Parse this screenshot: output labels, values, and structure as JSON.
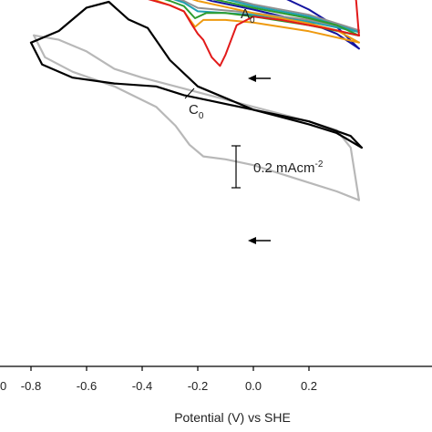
{
  "chart_data": {
    "type": "line",
    "xlabel": "Potential (V) vs SHE",
    "ylabel": "",
    "xlim": [
      -1.0,
      0.4
    ],
    "x_ticks": [
      "0",
      "-0.8",
      "-0.6",
      "-0.4",
      "-0.2",
      "0.0",
      "0.2"
    ],
    "grid": false,
    "scale_bar": {
      "label_main": "0.2 mAcm",
      "label_sup": "-2",
      "value_mA_cm2": 0.2
    },
    "annotations": [
      {
        "label_main": "A",
        "label_sub": "0"
      },
      {
        "label_main": "C",
        "label_sub": "0"
      }
    ],
    "top_panel": {
      "series": [
        {
          "color": "#b8b8b8",
          "forward": [
            [
              -0.79,
              -1.07
            ],
            [
              -0.75,
              -0.92
            ],
            [
              -0.65,
              -0.82
            ],
            [
              -0.5,
              -0.72
            ],
            [
              -0.35,
              -0.58
            ],
            [
              -0.28,
              -0.45
            ],
            [
              -0.23,
              -0.32
            ],
            [
              -0.18,
              -0.24
            ],
            [
              -0.1,
              -0.22
            ],
            [
              0.0,
              -0.18
            ],
            [
              0.1,
              -0.12
            ],
            [
              0.2,
              -0.06
            ],
            [
              0.3,
              0.0
            ],
            [
              0.38,
              0.06
            ]
          ],
          "reverse": [
            [
              0.38,
              0.06
            ],
            [
              0.35,
              -0.3
            ],
            [
              0.3,
              -0.42
            ],
            [
              0.2,
              -0.48
            ],
            [
              0.0,
              -0.58
            ],
            [
              -0.2,
              -0.68
            ],
            [
              -0.4,
              -0.78
            ],
            [
              -0.5,
              -0.84
            ],
            [
              -0.6,
              -0.96
            ],
            [
              -0.7,
              -1.04
            ],
            [
              -0.79,
              -1.07
            ]
          ]
        },
        {
          "color": "#000000",
          "forward": [
            [
              -0.8,
              -1.02
            ],
            [
              -0.76,
              -0.87
            ],
            [
              -0.65,
              -0.78
            ],
            [
              -0.5,
              -0.74
            ],
            [
              -0.35,
              -0.72
            ],
            [
              -0.25,
              -0.66
            ],
            [
              -0.15,
              -0.62
            ],
            [
              0.0,
              -0.56
            ],
            [
              0.2,
              -0.48
            ],
            [
              0.35,
              -0.38
            ],
            [
              0.39,
              -0.3
            ]
          ],
          "reverse": [
            [
              0.39,
              -0.3
            ],
            [
              0.3,
              -0.4
            ],
            [
              0.2,
              -0.46
            ],
            [
              0.0,
              -0.56
            ],
            [
              -0.2,
              -0.72
            ],
            [
              -0.3,
              -0.9
            ],
            [
              -0.38,
              -1.12
            ],
            [
              -0.45,
              -1.18
            ],
            [
              -0.52,
              -1.3
            ],
            [
              -0.6,
              -1.26
            ],
            [
              -0.7,
              -1.1
            ],
            [
              -0.8,
              -1.02
            ]
          ]
        }
      ]
    },
    "bottom_panel": {
      "series": [
        {
          "color": "#e21a1a",
          "forward": [
            [
              -0.9,
              -3.9
            ],
            [
              -0.86,
              -3.55
            ],
            [
              -0.8,
              -3.05
            ],
            [
              -0.7,
              -2.58
            ],
            [
              -0.6,
              -2.42
            ],
            [
              -0.5,
              -2.32
            ],
            [
              -0.4,
              -2.24
            ],
            [
              -0.3,
              -2.15
            ],
            [
              -0.25,
              -2.08
            ],
            [
              -0.22,
              -1.92
            ],
            [
              -0.2,
              -1.82
            ],
            [
              -0.18,
              -1.75
            ],
            [
              -0.15,
              -1.55
            ],
            [
              -0.12,
              -1.45
            ],
            [
              -0.1,
              -1.58
            ],
            [
              -0.06,
              -1.92
            ],
            [
              0.0,
              -2.02
            ],
            [
              0.1,
              -1.98
            ],
            [
              0.2,
              -1.92
            ],
            [
              0.3,
              -1.86
            ],
            [
              0.38,
              -1.8
            ]
          ],
          "reverse": [
            [
              0.38,
              -1.8
            ],
            [
              0.37,
              -2.2
            ],
            [
              0.35,
              -2.62
            ],
            [
              0.3,
              -2.67
            ],
            [
              0.2,
              -2.7
            ],
            [
              0.1,
              -2.71
            ],
            [
              0.0,
              -2.74
            ],
            [
              -0.1,
              -2.76
            ],
            [
              -0.2,
              -2.78
            ],
            [
              -0.3,
              -2.82
            ],
            [
              -0.4,
              -2.86
            ],
            [
              -0.45,
              -2.98
            ],
            [
              -0.5,
              -3.12
            ],
            [
              -0.55,
              -3.14
            ],
            [
              -0.62,
              -3.04
            ],
            [
              -0.7,
              -3.0
            ],
            [
              -0.8,
              -3.08
            ],
            [
              -0.9,
              -3.9
            ]
          ]
        },
        {
          "color": "#ee9a10",
          "forward": [
            [
              -0.79,
              -2.95
            ],
            [
              -0.7,
              -2.62
            ],
            [
              -0.6,
              -2.48
            ],
            [
              -0.5,
              -2.36
            ],
            [
              -0.4,
              -2.26
            ],
            [
              -0.3,
              -2.15
            ],
            [
              -0.25,
              -2.08
            ],
            [
              -0.21,
              -1.9
            ],
            [
              -0.18,
              -1.98
            ],
            [
              -0.15,
              -1.98
            ],
            [
              -0.1,
              -1.98
            ],
            [
              0.0,
              -1.95
            ],
            [
              0.2,
              -1.85
            ],
            [
              0.38,
              -1.72
            ]
          ],
          "reverse": [
            [
              0.38,
              -1.72
            ],
            [
              0.3,
              -1.86
            ],
            [
              0.2,
              -1.94
            ],
            [
              0.0,
              -2.06
            ],
            [
              -0.2,
              -2.2
            ],
            [
              -0.4,
              -2.4
            ],
            [
              -0.6,
              -2.62
            ],
            [
              -0.7,
              -2.72
            ],
            [
              -0.79,
              -2.95
            ]
          ]
        },
        {
          "color": "#2e9c2e",
          "forward": [
            [
              -0.77,
              -2.95
            ],
            [
              -0.7,
              -2.66
            ],
            [
              -0.6,
              -2.52
            ],
            [
              -0.5,
              -2.4
            ],
            [
              -0.4,
              -2.3
            ],
            [
              -0.3,
              -2.2
            ],
            [
              -0.25,
              -2.14
            ],
            [
              -0.21,
              -2.0
            ],
            [
              -0.17,
              -2.06
            ],
            [
              -0.1,
              -2.06
            ],
            [
              0.0,
              -2.02
            ],
            [
              0.2,
              -1.92
            ],
            [
              0.38,
              -1.8
            ]
          ],
          "reverse": [
            [
              0.38,
              -1.8
            ],
            [
              0.3,
              -1.92
            ],
            [
              0.2,
              -2.0
            ],
            [
              0.0,
              -2.12
            ],
            [
              -0.2,
              -2.26
            ],
            [
              -0.4,
              -2.46
            ],
            [
              -0.6,
              -2.68
            ],
            [
              -0.7,
              -2.8
            ],
            [
              -0.77,
              -2.95
            ]
          ]
        },
        {
          "color": "#20a0b0",
          "forward": [
            [
              -0.75,
              -2.9
            ],
            [
              -0.6,
              -2.56
            ],
            [
              -0.4,
              -2.34
            ],
            [
              -0.25,
              -2.18
            ],
            [
              -0.2,
              -2.08
            ],
            [
              -0.1,
              -2.06
            ],
            [
              0.0,
              -2.04
            ],
            [
              0.2,
              -1.96
            ],
            [
              0.38,
              -1.84
            ]
          ],
          "reverse": [
            [
              0.38,
              -1.84
            ],
            [
              0.2,
              -2.02
            ],
            [
              0.0,
              -2.14
            ],
            [
              -0.2,
              -2.3
            ],
            [
              -0.4,
              -2.5
            ],
            [
              -0.6,
              -2.72
            ],
            [
              -0.75,
              -2.9
            ]
          ]
        },
        {
          "color": "#909090",
          "forward": [
            [
              -0.74,
              -2.9
            ],
            [
              -0.6,
              -2.58
            ],
            [
              -0.4,
              -2.36
            ],
            [
              -0.25,
              -2.2
            ],
            [
              -0.2,
              -2.12
            ],
            [
              0.0,
              -2.06
            ],
            [
              0.2,
              -1.98
            ],
            [
              0.38,
              -1.86
            ]
          ],
          "reverse": [
            [
              0.38,
              -1.86
            ],
            [
              0.2,
              -2.04
            ],
            [
              0.0,
              -2.16
            ],
            [
              -0.2,
              -2.32
            ],
            [
              -0.4,
              -2.52
            ],
            [
              -0.6,
              -2.74
            ],
            [
              -0.74,
              -2.9
            ]
          ]
        },
        {
          "color": "#1414a0",
          "forward": [
            [
              -0.55,
              -3.12
            ],
            [
              -0.52,
              -2.8
            ],
            [
              -0.45,
              -2.58
            ],
            [
              -0.35,
              -2.45
            ],
            [
              -0.25,
              -2.3
            ],
            [
              -0.15,
              -2.2
            ],
            [
              0.0,
              -2.1
            ],
            [
              0.2,
              -1.95
            ],
            [
              0.3,
              -1.82
            ],
            [
              0.38,
              -1.65
            ]
          ],
          "reverse": [
            [
              0.38,
              -1.65
            ],
            [
              0.3,
              -1.9
            ],
            [
              0.2,
              -2.1
            ],
            [
              0.1,
              -2.25
            ],
            [
              0.0,
              -2.38
            ],
            [
              -0.1,
              -2.46
            ],
            [
              -0.2,
              -2.55
            ],
            [
              -0.3,
              -2.62
            ],
            [
              -0.4,
              -2.72
            ],
            [
              -0.45,
              -2.82
            ],
            [
              -0.5,
              -3.0
            ],
            [
              -0.55,
              -3.12
            ]
          ]
        }
      ]
    }
  }
}
